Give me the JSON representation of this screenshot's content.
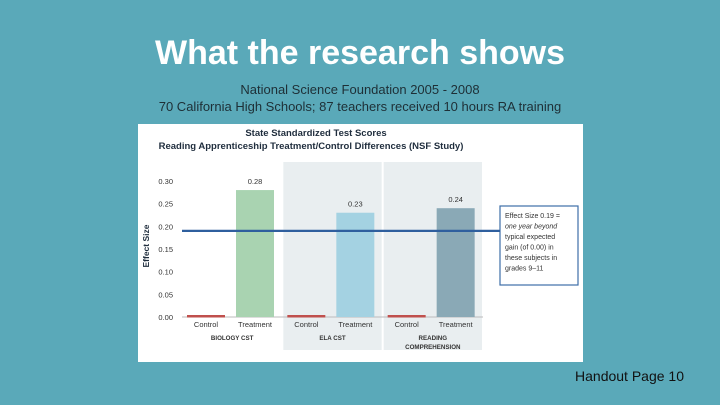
{
  "slide": {
    "title": "What the research shows",
    "subtitle_line1": "National Science Foundation 2005 - 2008",
    "subtitle_line2": "70 California High Schools; 87 teachers received 10 hours RA training",
    "footer": "Handout Page 10"
  },
  "colors": {
    "background": "#5aa9b9",
    "control": "#c0504d",
    "biology_treatment": "#a9d3b1",
    "ela_treatment": "#a4d2e2",
    "reading_treatment": "#8aa9b6",
    "reference_line": "#2f5f9e",
    "panel_shading": "#e9eef0"
  },
  "chart_data": {
    "type": "bar",
    "title": "State Standardized Test Scores",
    "subtitle": "Reading Apprenticeship Treatment/Control Differences (NSF Study)",
    "ylabel": "Effect Size",
    "ylim": [
      0,
      0.3
    ],
    "yticks": [
      "0.30",
      "0.25",
      "0.20",
      "0.15",
      "0.10",
      "0.05",
      "0.00"
    ],
    "ytick_values": [
      0.3,
      0.25,
      0.2,
      0.15,
      0.1,
      0.05,
      0.0
    ],
    "groups": [
      {
        "name_lines": [
          "BIOLOGY CST"
        ],
        "bars": [
          {
            "label": "Control",
            "value": 0.0,
            "value_label": ""
          },
          {
            "label": "Treatment",
            "value": 0.28,
            "value_label": "0.28"
          }
        ]
      },
      {
        "name_lines": [
          "ELA CST"
        ],
        "bars": [
          {
            "label": "Control",
            "value": 0.0,
            "value_label": ""
          },
          {
            "label": "Treatment",
            "value": 0.23,
            "value_label": "0.23"
          }
        ]
      },
      {
        "name_lines": [
          "READING",
          "COMPREHENSION"
        ],
        "bars": [
          {
            "label": "Control",
            "value": 0.0,
            "value_label": ""
          },
          {
            "label": "Treatment",
            "value": 0.24,
            "value_label": "0.24"
          }
        ]
      }
    ],
    "reference_line": {
      "value": 0.19,
      "annotation_lines": [
        "Effect Size 0.19 =",
        "one year beyond",
        "typical expected",
        "gain (of 0.00) in",
        "these subjects in",
        "grades 9–11"
      ]
    },
    "grid": false
  }
}
